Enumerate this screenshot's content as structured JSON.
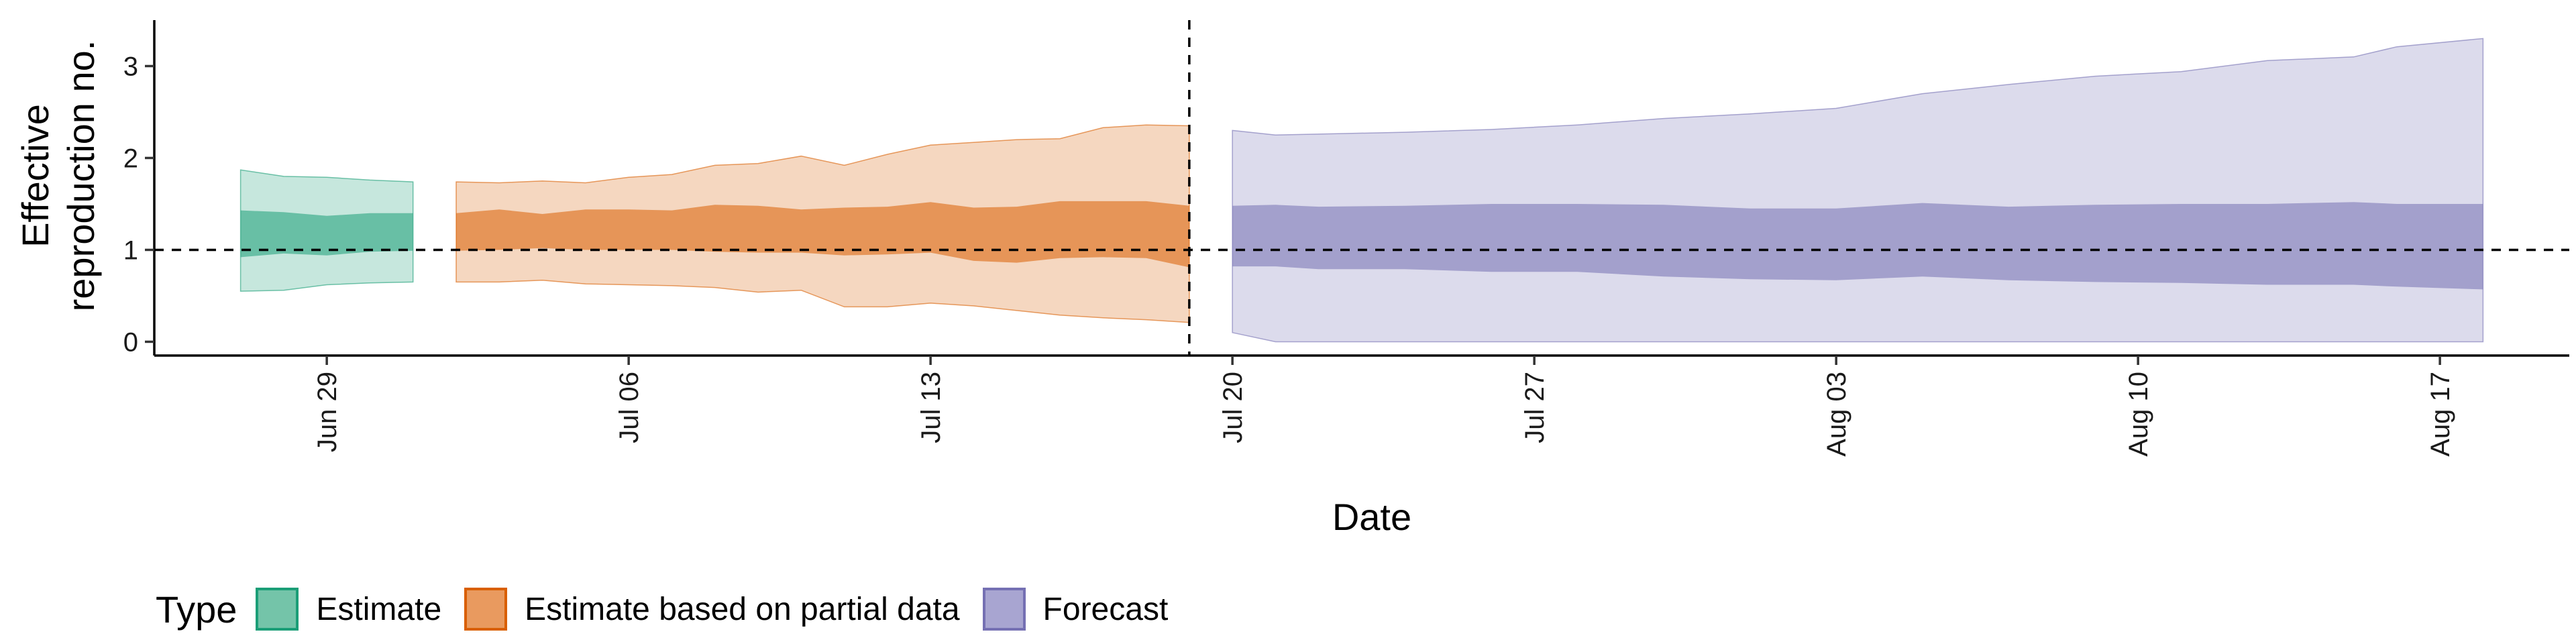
{
  "chart_data": {
    "type": "area",
    "title": "",
    "xlabel": "Date",
    "ylabel_lines": [
      "Effective",
      "reproduction no."
    ],
    "ylim": [
      -0.15,
      3.5
    ],
    "y_ticks": [
      0,
      1,
      2,
      3
    ],
    "xlim": [
      "2020-06-25",
      "2020-08-20"
    ],
    "x_ticks": [
      {
        "date": "2020-06-29",
        "label": "Jun 29"
      },
      {
        "date": "2020-07-06",
        "label": "Jul 06"
      },
      {
        "date": "2020-07-13",
        "label": "Jul 13"
      },
      {
        "date": "2020-07-20",
        "label": "Jul 20"
      },
      {
        "date": "2020-07-27",
        "label": "Jul 27"
      },
      {
        "date": "2020-08-03",
        "label": "Aug 03"
      },
      {
        "date": "2020-08-10",
        "label": "Aug 10"
      },
      {
        "date": "2020-08-17",
        "label": "Aug 17"
      }
    ],
    "reference_line_y": 1,
    "reference_line_x": "2020-07-19",
    "legend_title": "Type",
    "legend_position": "bottom",
    "grid": false,
    "series": [
      {
        "name": "Estimate",
        "fill": "#1b9e77",
        "points": [
          {
            "date": "2020-06-27",
            "lower_90": 0.55,
            "lower_50": 0.92,
            "upper_50": 1.43,
            "upper_90": 1.87
          },
          {
            "date": "2020-06-28",
            "lower_90": 0.56,
            "lower_50": 0.96,
            "upper_50": 1.41,
            "upper_90": 1.8
          },
          {
            "date": "2020-06-29",
            "lower_90": 0.62,
            "lower_50": 0.94,
            "upper_50": 1.37,
            "upper_90": 1.79
          },
          {
            "date": "2020-06-30",
            "lower_90": 0.64,
            "lower_50": 0.98,
            "upper_50": 1.4,
            "upper_90": 1.76
          },
          {
            "date": "2020-07-01",
            "lower_90": 0.65,
            "lower_50": 0.99,
            "upper_50": 1.4,
            "upper_90": 1.74
          }
        ]
      },
      {
        "name": "Estimate based on partial data",
        "fill": "#d95f02",
        "points": [
          {
            "date": "2020-07-02",
            "lower_90": 0.65,
            "lower_50": 0.99,
            "upper_50": 1.4,
            "upper_90": 1.74
          },
          {
            "date": "2020-07-03",
            "lower_90": 0.65,
            "lower_50": 1.0,
            "upper_50": 1.44,
            "upper_90": 1.73
          },
          {
            "date": "2020-07-04",
            "lower_90": 0.67,
            "lower_50": 1.02,
            "upper_50": 1.39,
            "upper_90": 1.75
          },
          {
            "date": "2020-07-05",
            "lower_90": 0.63,
            "lower_50": 1.0,
            "upper_50": 1.44,
            "upper_90": 1.73
          },
          {
            "date": "2020-07-06",
            "lower_90": 0.62,
            "lower_50": 1.0,
            "upper_50": 1.44,
            "upper_90": 1.79
          },
          {
            "date": "2020-07-07",
            "lower_90": 0.61,
            "lower_50": 1.0,
            "upper_50": 1.43,
            "upper_90": 1.82
          },
          {
            "date": "2020-07-08",
            "lower_90": 0.59,
            "lower_50": 0.98,
            "upper_50": 1.49,
            "upper_90": 1.92
          },
          {
            "date": "2020-07-09",
            "lower_90": 0.54,
            "lower_50": 0.97,
            "upper_50": 1.48,
            "upper_90": 1.94
          },
          {
            "date": "2020-07-10",
            "lower_90": 0.56,
            "lower_50": 0.97,
            "upper_50": 1.44,
            "upper_90": 2.02
          },
          {
            "date": "2020-07-11",
            "lower_90": 0.38,
            "lower_50": 0.94,
            "upper_50": 1.46,
            "upper_90": 1.92
          },
          {
            "date": "2020-07-12",
            "lower_90": 0.38,
            "lower_50": 0.95,
            "upper_50": 1.47,
            "upper_90": 2.04
          },
          {
            "date": "2020-07-13",
            "lower_90": 0.42,
            "lower_50": 0.97,
            "upper_50": 1.52,
            "upper_90": 2.14
          },
          {
            "date": "2020-07-14",
            "lower_90": 0.39,
            "lower_50": 0.88,
            "upper_50": 1.46,
            "upper_90": 2.17
          },
          {
            "date": "2020-07-15",
            "lower_90": 0.34,
            "lower_50": 0.86,
            "upper_50": 1.47,
            "upper_90": 2.2
          },
          {
            "date": "2020-07-16",
            "lower_90": 0.29,
            "lower_50": 0.91,
            "upper_50": 1.53,
            "upper_90": 2.21
          },
          {
            "date": "2020-07-17",
            "lower_90": 0.26,
            "lower_50": 0.92,
            "upper_50": 1.53,
            "upper_90": 2.33
          },
          {
            "date": "2020-07-18",
            "lower_90": 0.24,
            "lower_50": 0.91,
            "upper_50": 1.53,
            "upper_90": 2.36
          },
          {
            "date": "2020-07-19",
            "lower_90": 0.21,
            "lower_50": 0.81,
            "upper_50": 1.48,
            "upper_90": 2.35
          }
        ]
      },
      {
        "name": "Forecast",
        "fill": "#7570b3",
        "points": [
          {
            "date": "2020-07-20",
            "lower_90": 0.1,
            "lower_50": 0.82,
            "upper_50": 1.48,
            "upper_90": 2.3
          },
          {
            "date": "2020-07-21",
            "lower_90": 0.0,
            "lower_50": 0.82,
            "upper_50": 1.49,
            "upper_90": 2.25
          },
          {
            "date": "2020-07-22",
            "lower_90": 0.0,
            "lower_50": 0.79,
            "upper_50": 1.47,
            "upper_90": 2.26
          },
          {
            "date": "2020-07-24",
            "lower_90": 0.0,
            "lower_50": 0.79,
            "upper_50": 1.48,
            "upper_90": 2.28
          },
          {
            "date": "2020-07-26",
            "lower_90": 0.0,
            "lower_50": 0.76,
            "upper_50": 1.5,
            "upper_90": 2.31
          },
          {
            "date": "2020-07-28",
            "lower_90": 0.0,
            "lower_50": 0.76,
            "upper_50": 1.5,
            "upper_90": 2.36
          },
          {
            "date": "2020-07-30",
            "lower_90": 0.0,
            "lower_50": 0.71,
            "upper_50": 1.49,
            "upper_90": 2.43
          },
          {
            "date": "2020-08-01",
            "lower_90": 0.0,
            "lower_50": 0.68,
            "upper_50": 1.45,
            "upper_90": 2.48
          },
          {
            "date": "2020-08-03",
            "lower_90": 0.0,
            "lower_50": 0.67,
            "upper_50": 1.45,
            "upper_90": 2.54
          },
          {
            "date": "2020-08-05",
            "lower_90": 0.0,
            "lower_50": 0.71,
            "upper_50": 1.51,
            "upper_90": 2.7
          },
          {
            "date": "2020-08-07",
            "lower_90": 0.0,
            "lower_50": 0.67,
            "upper_50": 1.47,
            "upper_90": 2.8
          },
          {
            "date": "2020-08-09",
            "lower_90": 0.0,
            "lower_50": 0.65,
            "upper_50": 1.49,
            "upper_90": 2.89
          },
          {
            "date": "2020-08-11",
            "lower_90": 0.0,
            "lower_50": 0.64,
            "upper_50": 1.5,
            "upper_90": 2.94
          },
          {
            "date": "2020-08-13",
            "lower_90": 0.0,
            "lower_50": 0.62,
            "upper_50": 1.5,
            "upper_90": 3.06
          },
          {
            "date": "2020-08-15",
            "lower_90": 0.0,
            "lower_50": 0.62,
            "upper_50": 1.52,
            "upper_90": 3.1
          },
          {
            "date": "2020-08-16",
            "lower_90": 0.0,
            "lower_50": 0.6,
            "upper_50": 1.5,
            "upper_90": 3.21
          },
          {
            "date": "2020-08-18",
            "lower_90": 0.0,
            "lower_50": 0.57,
            "upper_50": 1.5,
            "upper_90": 3.3
          }
        ]
      }
    ]
  },
  "legend": {
    "title": "Type",
    "items": [
      {
        "label": "Estimate",
        "fill": "#74c4a9",
        "border": "#1b9e77"
      },
      {
        "label": "Estimate based on partial data",
        "fill": "#e99a5f",
        "border": "#d95f02"
      },
      {
        "label": "Forecast",
        "fill": "#a8a5d1",
        "border": "#7570b3"
      }
    ]
  }
}
